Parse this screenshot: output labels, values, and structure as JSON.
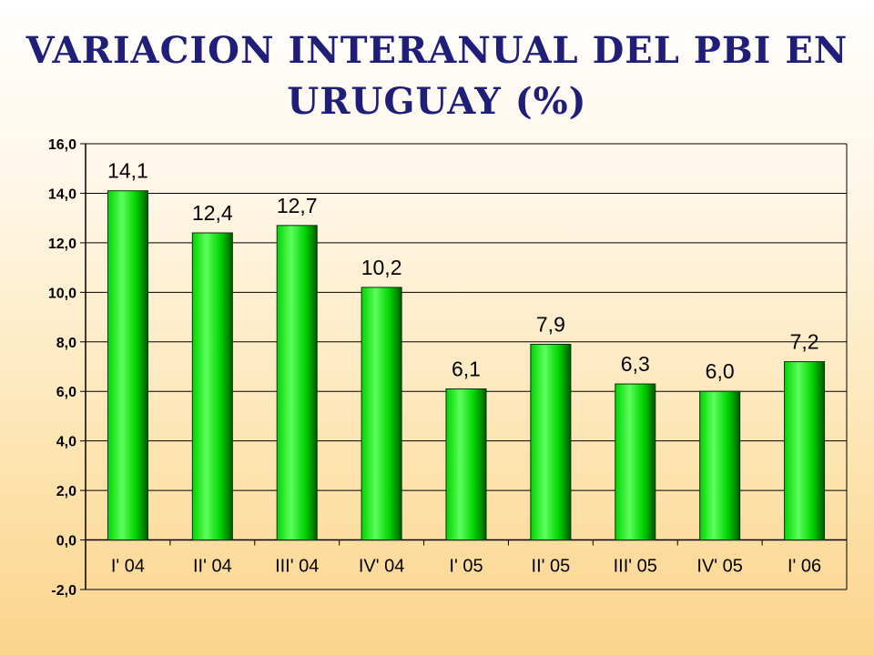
{
  "title": {
    "line1": "VARIACION INTERANUAL DEL PBI EN",
    "line2": "URUGUAY (%)"
  },
  "colors": {
    "bar_light": "#5cff5c",
    "bar_mid": "#00d400",
    "bar_dark": "#005a00",
    "title": "#1f1f7a",
    "axis": "#000000"
  },
  "chart_data": {
    "type": "bar",
    "title": "VARIACION INTERANUAL DEL PBI EN URUGUAY (%)",
    "categories": [
      "I' 04",
      "II' 04",
      "III' 04",
      "IV' 04",
      "I' 05",
      "II' 05",
      "III' 05",
      "IV' 05",
      "I' 06"
    ],
    "values": [
      14.1,
      12.4,
      12.7,
      10.2,
      6.1,
      7.9,
      6.3,
      6.0,
      7.2
    ],
    "data_labels": [
      "14,1",
      "12,4",
      "12,7",
      "10,2",
      "6,1",
      "7,9",
      "6,3",
      "6,0",
      "7,2"
    ],
    "yticks": [
      16,
      14,
      12,
      10,
      8,
      6,
      4,
      2,
      0,
      -2
    ],
    "ytick_labels": [
      "16,0",
      "14,0",
      "12,0",
      "10,0",
      "8,0",
      "6,0",
      "4,0",
      "2,0",
      "0,0",
      "-2,0"
    ],
    "ylim": [
      -2,
      16
    ],
    "grid": true,
    "legend": false,
    "xlabel": "",
    "ylabel": ""
  }
}
